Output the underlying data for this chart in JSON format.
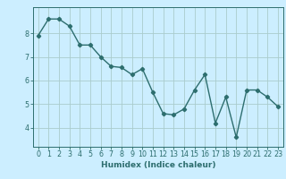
{
  "x": [
    0,
    1,
    2,
    3,
    4,
    5,
    6,
    7,
    8,
    9,
    10,
    11,
    12,
    13,
    14,
    15,
    16,
    17,
    18,
    19,
    20,
    21,
    22,
    23
  ],
  "y": [
    7.9,
    8.6,
    8.6,
    8.3,
    7.5,
    7.5,
    7.0,
    6.6,
    6.55,
    6.25,
    6.5,
    5.5,
    4.6,
    4.55,
    4.8,
    5.6,
    6.25,
    4.2,
    5.3,
    3.6,
    5.6,
    5.6,
    5.3,
    4.9
  ],
  "line_color": "#2d6e6e",
  "marker": "D",
  "marker_size": 2.2,
  "bg_color": "#cceeff",
  "grid_color": "#aacccc",
  "xlabel": "Humidex (Indice chaleur)",
  "xlim": [
    -0.5,
    23.5
  ],
  "ylim": [
    3.2,
    9.1
  ],
  "yticks": [
    4,
    5,
    6,
    7,
    8
  ],
  "xticks": [
    0,
    1,
    2,
    3,
    4,
    5,
    6,
    7,
    8,
    9,
    10,
    11,
    12,
    13,
    14,
    15,
    16,
    17,
    18,
    19,
    20,
    21,
    22,
    23
  ],
  "tick_color": "#2d6e6e",
  "xlabel_fontsize": 6.5,
  "tick_fontsize": 5.8,
  "line_width": 1.0
}
